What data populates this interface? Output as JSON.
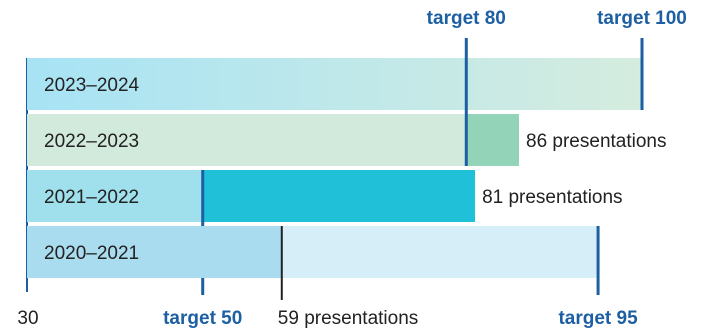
{
  "chart_data": {
    "type": "bar",
    "orientation": "horizontal",
    "x_axis": {
      "min_label": "30",
      "range": [
        30,
        100
      ]
    },
    "rows": [
      {
        "label": "2023–2024",
        "target_value": 100,
        "target_label": "target 100",
        "target_label_position": "top",
        "target_fill": "gradient",
        "actual_value": null,
        "value_label": ""
      },
      {
        "label": "2022–2023",
        "target_value": 80,
        "target_label": "target 80",
        "target_label_position": "top",
        "target_fill": "#d2eadc",
        "actual_value": 86,
        "actual_fill": "#93d3b7",
        "value_label": "86 presentations"
      },
      {
        "label": "2021–2022",
        "target_value": 50,
        "target_label": "target 50",
        "target_label_position": "bottom",
        "target_fill": "#9fe0ec",
        "actual_value": 81,
        "actual_fill": "#20c0d8",
        "value_label": "81 presentations"
      },
      {
        "label": "2020–2021",
        "target_value": 95,
        "target_label": "target 95",
        "target_label_position": "bottom",
        "target_fill": "#d5eef8",
        "actual_value": 59,
        "actual_fill": "#aadcef",
        "value_label": "59 presentations",
        "value_label_position": "bottom"
      }
    ],
    "colors": {
      "target_line": "#1d5fa3",
      "target_text": "#1d5fa3",
      "text": "#222222",
      "axis": "#1d5fa3",
      "gradient_start": "#a7e3f5",
      "gradient_end": "#d5ecdf"
    }
  }
}
